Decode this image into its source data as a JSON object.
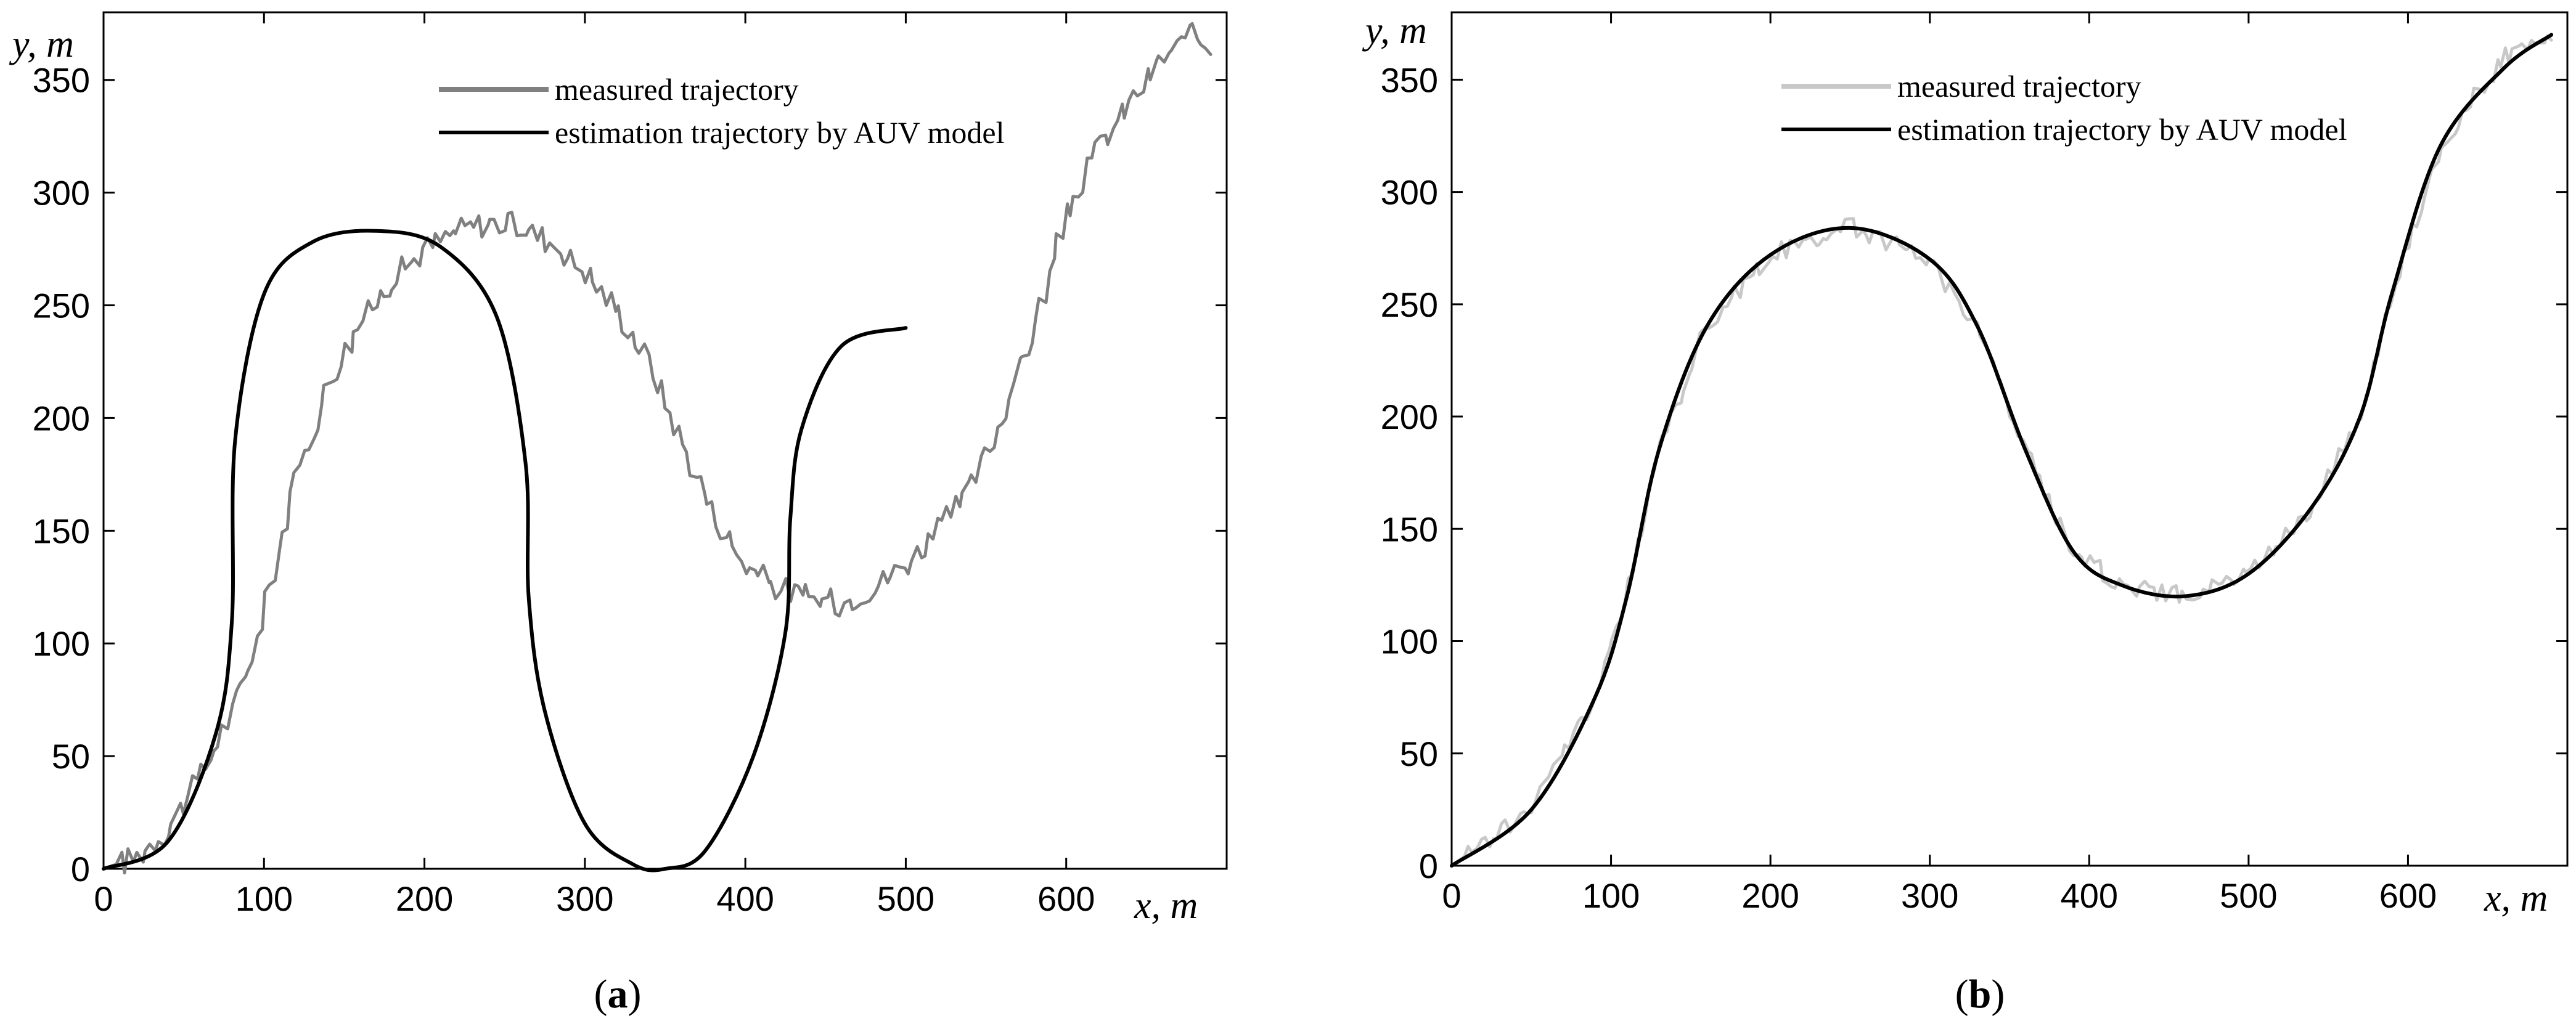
{
  "chart_data": [
    {
      "type": "line",
      "panel": "a",
      "caption_open": "(",
      "caption_letter": "a",
      "caption_close": ")",
      "xlabel": "x, m",
      "ylabel": "y, m",
      "xlim": [
        0,
        700
      ],
      "ylim": [
        0,
        380
      ],
      "xticks": [
        "0",
        "100",
        "200",
        "300",
        "400",
        "500",
        "600"
      ],
      "yticks": [
        "0",
        "50",
        "100",
        "150",
        "200",
        "250",
        "300",
        "350"
      ],
      "legend_position": "top-center",
      "series": [
        {
          "name": "measured trajectory",
          "color": "#808080",
          "style": "noisy",
          "x": [
            0,
            20,
            40,
            60,
            80,
            95,
            110,
            125,
            140,
            160,
            180,
            200,
            220,
            240,
            260,
            280,
            300,
            320,
            340,
            360,
            380,
            400,
            420,
            440,
            460,
            480,
            500,
            520,
            540,
            560,
            580,
            600,
            620,
            640,
            660,
            680,
            690
          ],
          "y": [
            0,
            5,
            18,
            40,
            70,
            100,
            145,
            185,
            215,
            242,
            262,
            275,
            283,
            287,
            285,
            278,
            265,
            248,
            225,
            190,
            158,
            135,
            125,
            120,
            118,
            125,
            135,
            150,
            168,
            200,
            240,
            290,
            320,
            340,
            360,
            370,
            365
          ]
        },
        {
          "name": "estimation trajectory by AUV model",
          "color": "#000000",
          "style": "smooth",
          "x": [
            0,
            40,
            70,
            80,
            82,
            100,
            130,
            170,
            210,
            245,
            263,
            265,
            275,
            300,
            330,
            350,
            375,
            405,
            425,
            428,
            435,
            460,
            500
          ],
          "y": [
            0,
            12,
            60,
            110,
            190,
            255,
            278,
            283,
            276,
            245,
            180,
            120,
            70,
            20,
            2,
            0,
            8,
            50,
            105,
            155,
            195,
            232,
            240
          ]
        }
      ]
    },
    {
      "type": "line",
      "panel": "b",
      "caption_open": "(",
      "caption_letter": "b",
      "caption_close": ")",
      "xlabel": "x, m",
      "ylabel": "y, m",
      "xlim": [
        0,
        700
      ],
      "ylim": [
        0,
        380
      ],
      "xticks": [
        "0",
        "100",
        "200",
        "300",
        "400",
        "500",
        "600"
      ],
      "yticks": [
        "0",
        "50",
        "100",
        "150",
        "200",
        "250",
        "300",
        "350"
      ],
      "legend_position": "top-center",
      "series": [
        {
          "name": "measured trajectory",
          "color": "#c8c8c8",
          "style": "noisy",
          "x": [
            0,
            50,
            90,
            110,
            130,
            160,
            200,
            250,
            300,
            330,
            360,
            390,
            420,
            460,
            500,
            540,
            570,
            590,
            620,
            660,
            690
          ],
          "y": [
            0,
            25,
            75,
            120,
            185,
            240,
            272,
            285,
            270,
            240,
            185,
            140,
            125,
            120,
            130,
            160,
            200,
            255,
            320,
            360,
            368
          ]
        },
        {
          "name": "estimation trajectory by AUV model",
          "color": "#000000",
          "style": "smooth",
          "x": [
            0,
            50,
            90,
            110,
            130,
            160,
            200,
            250,
            300,
            330,
            360,
            390,
            420,
            460,
            500,
            540,
            570,
            590,
            620,
            660,
            690
          ],
          "y": [
            0,
            25,
            75,
            120,
            185,
            240,
            272,
            284,
            270,
            240,
            185,
            140,
            125,
            120,
            130,
            160,
            200,
            255,
            320,
            355,
            370
          ]
        }
      ]
    }
  ],
  "colors": {
    "axes": "#000000",
    "grid_bg": "#ffffff"
  }
}
